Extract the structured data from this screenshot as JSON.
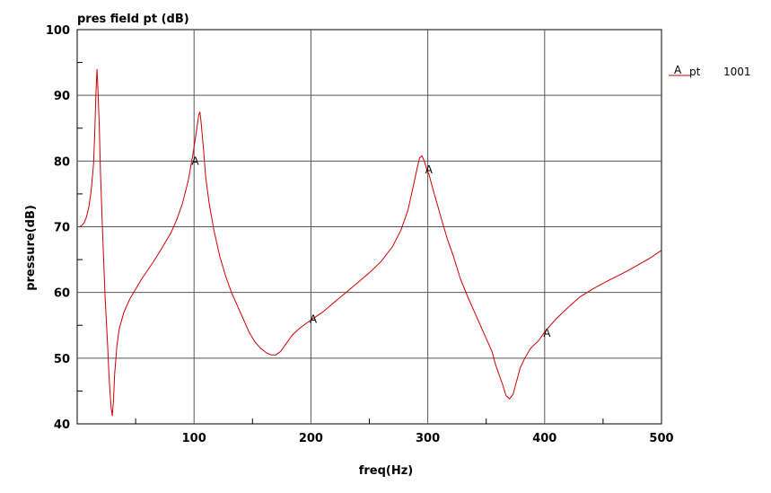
{
  "chart_data": {
    "type": "line",
    "title": "pres field pt (dB)",
    "xlabel": "freq(Hz)",
    "ylabel": "pressure(dB)",
    "xlim": [
      0,
      500
    ],
    "ylim": [
      40,
      100
    ],
    "x_ticks": [
      100,
      200,
      300,
      400,
      500
    ],
    "y_ticks": [
      40,
      50,
      60,
      70,
      80,
      90,
      100
    ],
    "grid": true,
    "legend_position": "top-right",
    "series": [
      {
        "name": "pt",
        "legend_marker": "A",
        "legend_value": "1001",
        "color": "#cc0000",
        "marker_labels": [
          {
            "x": 101,
            "y": 80,
            "text": "A"
          },
          {
            "x": 301,
            "y": 78.7,
            "text": "A"
          },
          {
            "x": 202,
            "y": 55.9,
            "text": "A"
          },
          {
            "x": 402,
            "y": 53.8,
            "text": "A"
          }
        ],
        "points": [
          [
            2,
            70.0
          ],
          [
            4,
            70.2
          ],
          [
            6,
            70.6
          ],
          [
            8,
            71.5
          ],
          [
            10,
            73.0
          ],
          [
            12,
            75.5
          ],
          [
            14,
            79.5
          ],
          [
            15,
            84.0
          ],
          [
            16,
            90.0
          ],
          [
            17,
            94.0
          ],
          [
            18,
            90.0
          ],
          [
            19,
            85.0
          ],
          [
            20,
            78.0
          ],
          [
            22,
            68.0
          ],
          [
            24,
            59.0
          ],
          [
            26,
            52.0
          ],
          [
            27,
            48.0
          ],
          [
            28,
            45.0
          ],
          [
            29,
            42.5
          ],
          [
            30,
            41.2
          ],
          [
            31,
            43.5
          ],
          [
            32,
            47.5
          ],
          [
            34,
            52.0
          ],
          [
            36,
            54.5
          ],
          [
            40,
            57.0
          ],
          [
            45,
            59.0
          ],
          [
            50,
            60.5
          ],
          [
            55,
            62.0
          ],
          [
            60,
            63.3
          ],
          [
            65,
            64.6
          ],
          [
            70,
            66.0
          ],
          [
            75,
            67.5
          ],
          [
            80,
            69.0
          ],
          [
            85,
            71.0
          ],
          [
            90,
            73.5
          ],
          [
            95,
            77.0
          ],
          [
            99,
            81.0
          ],
          [
            102,
            84.5
          ],
          [
            104,
            87.0
          ],
          [
            105,
            87.5
          ],
          [
            106,
            86.0
          ],
          [
            108,
            82.0
          ],
          [
            110,
            77.5
          ],
          [
            113,
            73.5
          ],
          [
            117,
            69.5
          ],
          [
            122,
            65.5
          ],
          [
            127,
            62.5
          ],
          [
            132,
            60.0
          ],
          [
            137,
            58.0
          ],
          [
            142,
            56.0
          ],
          [
            147,
            54.0
          ],
          [
            152,
            52.5
          ],
          [
            157,
            51.5
          ],
          [
            162,
            50.8
          ],
          [
            166,
            50.5
          ],
          [
            170,
            50.5
          ],
          [
            174,
            51.0
          ],
          [
            178,
            52.0
          ],
          [
            184,
            53.5
          ],
          [
            190,
            54.5
          ],
          [
            196,
            55.3
          ],
          [
            200,
            55.8
          ],
          [
            210,
            57.0
          ],
          [
            220,
            58.5
          ],
          [
            230,
            60.0
          ],
          [
            240,
            61.5
          ],
          [
            250,
            63.0
          ],
          [
            260,
            64.7
          ],
          [
            270,
            67.0
          ],
          [
            277,
            69.5
          ],
          [
            283,
            72.5
          ],
          [
            288,
            76.5
          ],
          [
            291,
            79.0
          ],
          [
            293,
            80.5
          ],
          [
            295,
            80.8
          ],
          [
            297,
            80.0
          ],
          [
            299,
            78.8
          ],
          [
            301,
            78.0
          ],
          [
            304,
            76.0
          ],
          [
            308,
            73.5
          ],
          [
            312,
            71.0
          ],
          [
            317,
            68.0
          ],
          [
            322,
            65.5
          ],
          [
            328,
            62.0
          ],
          [
            335,
            59.0
          ],
          [
            340,
            57.0
          ],
          [
            345,
            55.0
          ],
          [
            350,
            53.0
          ],
          [
            355,
            51.0
          ],
          [
            358,
            49.0
          ],
          [
            361,
            47.5
          ],
          [
            364,
            46.0
          ],
          [
            367,
            44.3
          ],
          [
            370,
            43.8
          ],
          [
            373,
            44.5
          ],
          [
            376,
            46.5
          ],
          [
            379,
            48.5
          ],
          [
            383,
            50.0
          ],
          [
            388,
            51.5
          ],
          [
            395,
            52.7
          ],
          [
            400,
            54.0
          ],
          [
            410,
            56.0
          ],
          [
            420,
            57.7
          ],
          [
            430,
            59.3
          ],
          [
            440,
            60.4
          ],
          [
            450,
            61.4
          ],
          [
            460,
            62.3
          ],
          [
            470,
            63.2
          ],
          [
            480,
            64.2
          ],
          [
            490,
            65.2
          ],
          [
            500,
            66.4
          ]
        ]
      }
    ]
  }
}
